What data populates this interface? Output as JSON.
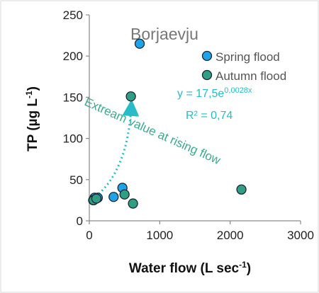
{
  "chart_data": {
    "type": "scatter",
    "title": "Borjaevju",
    "x_label": {
      "main": "Water flow (L sec",
      "sup": "-1",
      "end": ")"
    },
    "y_label": {
      "main": "TP (µg L",
      "sup": "-1",
      "end": ")"
    },
    "xlim": [
      0,
      3000
    ],
    "xticks": [
      0,
      1000,
      2000,
      3000
    ],
    "ylim": [
      0,
      250
    ],
    "yticks": [
      0,
      50,
      100,
      150,
      200,
      250
    ],
    "legend": "right",
    "series": [
      {
        "name": "Spring flood",
        "color": "#1ea3e8",
        "x": [
          715,
          75,
          120,
          345,
          470,
          55
        ],
        "values": [
          215,
          28,
          28,
          29,
          40,
          25
        ]
      },
      {
        "name": "Autumn flood",
        "color": "#2f9e84",
        "x": [
          590,
          60,
          500,
          620,
          2160,
          100
        ],
        "values": [
          151,
          25,
          32,
          21,
          38,
          27
        ]
      }
    ],
    "equation": {
      "main": "y = 17,5e",
      "sup": "0,0028x"
    },
    "r_squared": "R² = 0,74",
    "annotation": "Extream value at rising flow"
  }
}
